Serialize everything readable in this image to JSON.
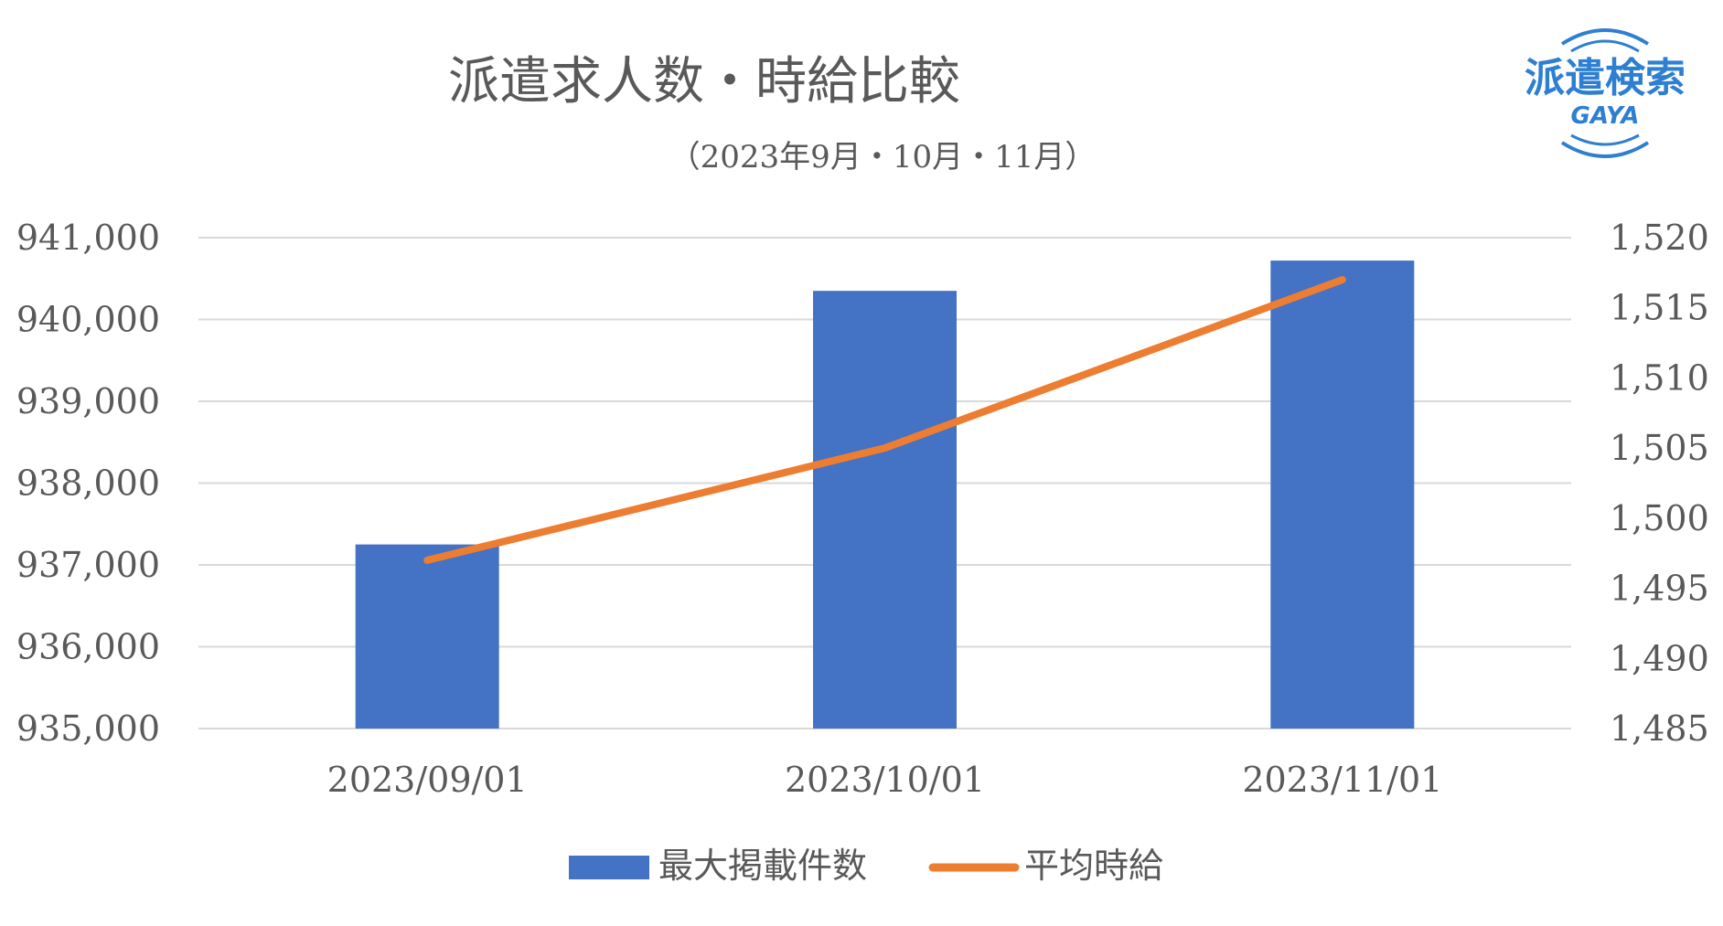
{
  "chart_data": {
    "type": "bar",
    "title": "派遣求人数・時給比較",
    "subtitle": "（2023年9月・10月・11月）",
    "categories": [
      "2023/09/01",
      "2023/10/01",
      "2023/11/01"
    ],
    "series": [
      {
        "name": "最大掲載件数",
        "type": "bar",
        "axis": "left",
        "color": "#4472c4",
        "values": [
          937250,
          940350,
          940720
        ]
      },
      {
        "name": "平均時給",
        "type": "line",
        "axis": "right",
        "color": "#ed7d31",
        "values": [
          1497,
          1505,
          1517
        ]
      }
    ],
    "y_left": {
      "min": 935000,
      "max": 941000,
      "step": 1000,
      "ticks": [
        "935,000",
        "936,000",
        "937,000",
        "938,000",
        "939,000",
        "940,000",
        "941,000"
      ]
    },
    "y_right": {
      "min": 1485,
      "max": 1520,
      "step": 5,
      "ticks": [
        "1,485",
        "1,490",
        "1,495",
        "1,500",
        "1,505",
        "1,510",
        "1,515",
        "1,520"
      ]
    },
    "grid": true,
    "legend_position": "bottom"
  },
  "logo": {
    "line1": "派遣検索",
    "line2": "GAYA",
    "color": "#2e7fd1"
  },
  "colors": {
    "gridline": "#d9d9d9",
    "text": "#595959"
  }
}
